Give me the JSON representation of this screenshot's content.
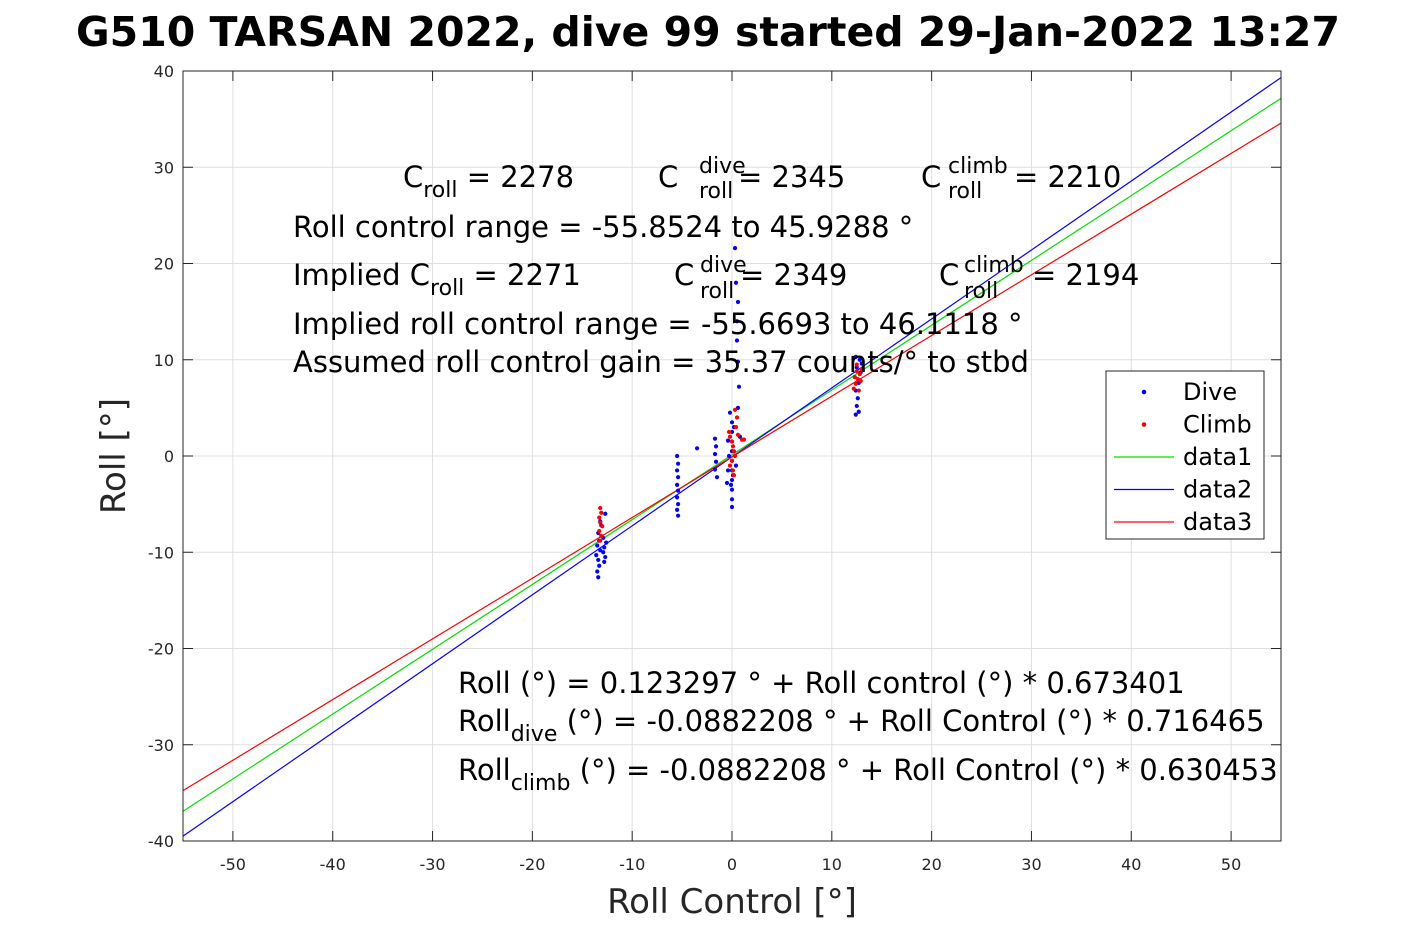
{
  "chart_data": {
    "type": "scatter",
    "title": "G510 TARSAN 2022, dive 99 started 29-Jan-2022 13:27",
    "xlabel": "Roll Control [°]",
    "ylabel": "Roll [°]",
    "xlim": [
      -55,
      55
    ],
    "ylim": [
      -40,
      40
    ],
    "xticks": [
      -50,
      -40,
      -30,
      -20,
      -10,
      0,
      10,
      20,
      30,
      40,
      50
    ],
    "yticks": [
      -40,
      -30,
      -20,
      -10,
      0,
      10,
      20,
      30,
      40
    ],
    "grid": true,
    "legend_position": "right",
    "colors": {
      "dive": "#0000ff",
      "climb": "#ff0000",
      "data1": "#00e000",
      "data2": "#0000ff",
      "data3": "#ff0000"
    },
    "scatter_series": [
      {
        "name": "Dive",
        "color": "#0000ff",
        "points": [
          [
            -13.4,
            -12.6
          ],
          [
            -13.5,
            -12.0
          ],
          [
            -13.3,
            -11.4
          ],
          [
            -13.4,
            -10.8
          ],
          [
            -13.6,
            -10.3
          ],
          [
            -13.2,
            -9.8
          ],
          [
            -13.5,
            -9.3
          ],
          [
            -13.3,
            -8.8
          ],
          [
            -13.4,
            -8.0
          ],
          [
            -13.1,
            -7.2
          ],
          [
            -13.2,
            -6.8
          ],
          [
            -12.8,
            -11.0
          ],
          [
            -12.7,
            -10.5
          ],
          [
            -12.9,
            -10.0
          ],
          [
            -12.8,
            -9.5
          ],
          [
            -12.6,
            -9.0
          ],
          [
            -12.9,
            -8.5
          ],
          [
            -12.7,
            -6.0
          ],
          [
            -5.5,
            0.0
          ],
          [
            -5.4,
            -0.8
          ],
          [
            -5.5,
            -1.5
          ],
          [
            -5.4,
            -2.2
          ],
          [
            -5.5,
            -3.0
          ],
          [
            -5.4,
            -3.6
          ],
          [
            -5.5,
            -4.3
          ],
          [
            -5.4,
            -5.0
          ],
          [
            -5.5,
            -5.6
          ],
          [
            -5.4,
            -6.2
          ],
          [
            -3.5,
            0.8
          ],
          [
            -1.7,
            1.8
          ],
          [
            -1.6,
            1.0
          ],
          [
            -1.7,
            0.2
          ],
          [
            -1.6,
            -0.6
          ],
          [
            -1.7,
            -1.4
          ],
          [
            -1.5,
            -2.2
          ],
          [
            -0.4,
            1.6
          ],
          [
            -0.3,
            0.0
          ],
          [
            -0.4,
            -1.5
          ],
          [
            -0.5,
            -2.8
          ],
          [
            0.0,
            3.5
          ],
          [
            0.0,
            2.5
          ],
          [
            0.0,
            1.5
          ],
          [
            0.0,
            0.5
          ],
          [
            0.0,
            -0.5
          ],
          [
            0.0,
            -1.5
          ],
          [
            0.0,
            -2.5
          ],
          [
            0.0,
            -3.5
          ],
          [
            0.0,
            -4.5
          ],
          [
            0.0,
            -5.3
          ],
          [
            -0.2,
            4.5
          ],
          [
            0.2,
            3.0
          ],
          [
            0.1,
            -2.0
          ],
          [
            -0.1,
            -3.0
          ],
          [
            0.3,
            21.6
          ],
          [
            0.4,
            18.0
          ],
          [
            0.6,
            16.0
          ],
          [
            0.5,
            14.0
          ],
          [
            0.5,
            12.0
          ],
          [
            0.6,
            9.8
          ],
          [
            0.7,
            7.2
          ],
          [
            0.6,
            5.0
          ],
          [
            0.8,
            2.0
          ],
          [
            0.4,
            -1.0
          ],
          [
            12.4,
            10.3
          ],
          [
            12.8,
            10.0
          ],
          [
            13.0,
            9.6
          ],
          [
            12.5,
            9.2
          ],
          [
            12.9,
            8.7
          ],
          [
            12.3,
            8.2
          ],
          [
            12.7,
            7.6
          ],
          [
            12.4,
            6.8
          ],
          [
            12.6,
            6.0
          ],
          [
            12.5,
            5.2
          ],
          [
            12.7,
            4.6
          ],
          [
            12.4,
            4.3
          ]
        ]
      },
      {
        "name": "Climb",
        "color": "#ff0000",
        "points": [
          [
            -13.2,
            -5.4
          ],
          [
            -13.1,
            -5.9
          ],
          [
            -13.3,
            -6.4
          ],
          [
            -13.2,
            -6.9
          ],
          [
            -13.0,
            -7.3
          ],
          [
            -13.3,
            -7.8
          ],
          [
            -13.1,
            -8.3
          ],
          [
            -13.2,
            -8.8
          ],
          [
            -0.3,
            2.5
          ],
          [
            -0.2,
            2.0
          ],
          [
            0.0,
            1.5
          ],
          [
            0.1,
            1.0
          ],
          [
            0.2,
            0.5
          ],
          [
            0.3,
            0.0
          ],
          [
            0.0,
            -0.5
          ],
          [
            -0.2,
            -1.0
          ],
          [
            0.1,
            -1.5
          ],
          [
            0.2,
            -2.0
          ],
          [
            0.4,
            3.0
          ],
          [
            0.5,
            4.0
          ],
          [
            0.3,
            4.8
          ],
          [
            1.0,
            1.7
          ],
          [
            1.2,
            1.7
          ],
          [
            0.6,
            2.2
          ],
          [
            12.2,
            7.0
          ],
          [
            12.4,
            7.5
          ],
          [
            12.6,
            8.0
          ],
          [
            12.8,
            8.5
          ],
          [
            13.0,
            9.0
          ],
          [
            12.5,
            9.5
          ],
          [
            12.3,
            8.2
          ],
          [
            12.9,
            7.8
          ],
          [
            12.7,
            6.8
          ],
          [
            12.5,
            8.8
          ]
        ]
      }
    ],
    "line_series": [
      {
        "name": "data1",
        "color": "#00e000",
        "intercept": 0.123297,
        "slope": 0.673401
      },
      {
        "name": "data2",
        "color": "#0000ff",
        "intercept": -0.0882208,
        "slope": 0.716465
      },
      {
        "name": "data3",
        "color": "#ff0000",
        "intercept": -0.0882208,
        "slope": 0.630453
      }
    ]
  },
  "annotations": {
    "c_roll_label": "C",
    "c_roll_sub": "roll",
    "c_roll_value": " = 2278",
    "c_dive_label": "C",
    "c_dive_sup": "dive",
    "c_dive_sub": "roll",
    "c_dive_value": " = 2345",
    "c_climb_label": "C",
    "c_climb_sup": "climb",
    "c_climb_sub": "roll",
    "c_climb_value": " = 2210",
    "range": "Roll control range = -55.8524 to 45.9288 °",
    "implied_label": "Implied C",
    "implied_sub": "roll",
    "implied_value": " = 2271",
    "implied_dive_label": "C",
    "implied_dive_sup": "dive",
    "implied_dive_sub": "roll",
    "implied_dive_value": " = 2349",
    "implied_climb_label": "C",
    "implied_climb_sup": "climb",
    "implied_climb_sub": "roll",
    "implied_climb_value": " = 2194",
    "implied_range": "Implied roll control range = -55.6693 to 46.1118 °",
    "gain": "Assumed roll control gain = 35.37 counts/° to stbd",
    "fit_all": "Roll (°) = 0.123297 ° + Roll control (°) * 0.673401",
    "fit_dive_label": "Roll",
    "fit_dive_sub": "dive",
    "fit_dive_rest": " (°) = -0.0882208 ° + Roll Control (°) * 0.716465",
    "fit_climb_label": "Roll",
    "fit_climb_sub": "climb",
    "fit_climb_rest": " (°) = -0.0882208 ° + Roll Control (°) * 0.630453"
  },
  "legend": {
    "items": [
      {
        "label": "Dive",
        "kind": "marker",
        "color": "#0000ff"
      },
      {
        "label": "Climb",
        "kind": "marker",
        "color": "#ff0000"
      },
      {
        "label": "data1",
        "kind": "line",
        "color": "#00e000"
      },
      {
        "label": "data2",
        "kind": "line",
        "color": "#0000ff"
      },
      {
        "label": "data3",
        "kind": "line",
        "color": "#ff0000"
      }
    ]
  }
}
